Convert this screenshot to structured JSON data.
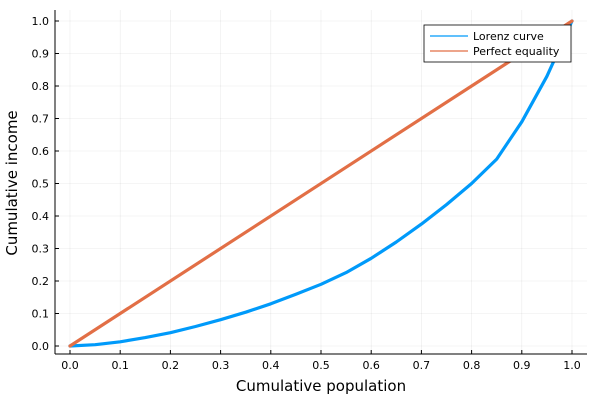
{
  "chart_data": {
    "type": "line",
    "xlabel": "Cumulative population",
    "ylabel": "Cumulative income",
    "xlim": [
      0,
      1
    ],
    "ylim": [
      0,
      1
    ],
    "x_ticks": [
      "0.0",
      "0.1",
      "0.2",
      "0.3",
      "0.4",
      "0.5",
      "0.6",
      "0.7",
      "0.8",
      "0.9",
      "1.0"
    ],
    "y_ticks": [
      "0.0",
      "0.1",
      "0.2",
      "0.3",
      "0.4",
      "0.5",
      "0.6",
      "0.7",
      "0.8",
      "0.9",
      "1.0"
    ],
    "grid": true,
    "legend_position": "top-right",
    "series": [
      {
        "name": "Lorenz curve",
        "color": "#009AFA",
        "x": [
          0.0,
          0.05,
          0.1,
          0.15,
          0.2,
          0.25,
          0.3,
          0.35,
          0.4,
          0.45,
          0.5,
          0.55,
          0.6,
          0.65,
          0.7,
          0.75,
          0.8,
          0.85,
          0.9,
          0.95,
          1.0
        ],
        "y": [
          0.0,
          0.004,
          0.013,
          0.026,
          0.041,
          0.06,
          0.081,
          0.104,
          0.13,
          0.159,
          0.19,
          0.226,
          0.27,
          0.32,
          0.375,
          0.435,
          0.5,
          0.575,
          0.69,
          0.83,
          1.0
        ]
      },
      {
        "name": "Perfect equality",
        "color": "#E26F46",
        "x": [
          0.0,
          1.0
        ],
        "y": [
          0.0,
          1.0
        ]
      }
    ]
  }
}
